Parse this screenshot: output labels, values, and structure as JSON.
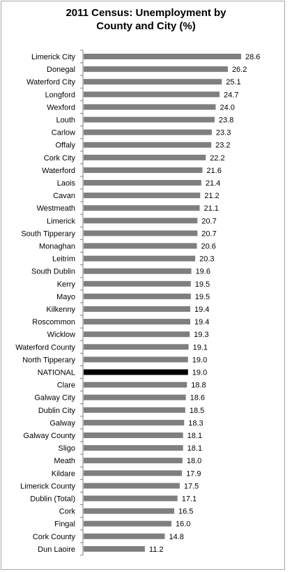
{
  "chart_data": {
    "type": "bar",
    "orientation": "horizontal",
    "title": "2011 Census:  Unemployment by\nCounty and City (%)",
    "categories": [
      "Limerick City",
      "Donegal",
      "Waterford City",
      "Longford",
      "Wexford",
      "Louth",
      "Carlow",
      "Offaly",
      "Cork City",
      "Waterford",
      "Laois",
      "Cavan",
      "Westmeath",
      "Limerick",
      "South Tipperary",
      "Monaghan",
      "Leitrim",
      "South Dublin",
      "Kerry",
      "Mayo",
      "Kilkenny",
      "Roscommon",
      "Wicklow",
      "Waterford County",
      "North Tipperary",
      "NATIONAL",
      "Clare",
      "Galway City",
      "Dublin City",
      "Galway",
      "Galway County",
      "Sligo",
      "Meath",
      "Kildare",
      "Limerick County",
      "Dublin (Total)",
      "Cork",
      "Fingal",
      "Cork County",
      "Dun Laoire"
    ],
    "values": [
      28.6,
      26.2,
      25.1,
      24.7,
      24.0,
      23.8,
      23.3,
      23.2,
      22.2,
      21.6,
      21.4,
      21.2,
      21.1,
      20.7,
      20.7,
      20.6,
      20.3,
      19.6,
      19.5,
      19.5,
      19.4,
      19.4,
      19.3,
      19.1,
      19.0,
      19.0,
      18.8,
      18.6,
      18.5,
      18.3,
      18.1,
      18.1,
      18.0,
      17.9,
      17.5,
      17.1,
      16.5,
      16.0,
      14.8,
      11.2
    ],
    "value_labels": [
      "28.6",
      "26.2",
      "25.1",
      "24.7",
      "24.0",
      "23.8",
      "23.3",
      "23.2",
      "22.2",
      "21.6",
      "21.4",
      "21.2",
      "21.1",
      "20.7",
      "20.7",
      "20.6",
      "20.3",
      "19.6",
      "19.5",
      "19.5",
      "19.4",
      "19.4",
      "19.3",
      "19.1",
      "19.0",
      "19.0",
      "18.8",
      "18.6",
      "18.5",
      "18.3",
      "18.1",
      "18.1",
      "18.0",
      "17.9",
      "17.5",
      "17.1",
      "16.5",
      "16.0",
      "14.8",
      "11.2"
    ],
    "highlight": "NATIONAL",
    "colors": {
      "bar": "#7f7f7f",
      "highlight": "#000000",
      "axis": "#7f7f7f"
    },
    "xlim": [
      0,
      30
    ],
    "grid": false,
    "legend": "none"
  }
}
